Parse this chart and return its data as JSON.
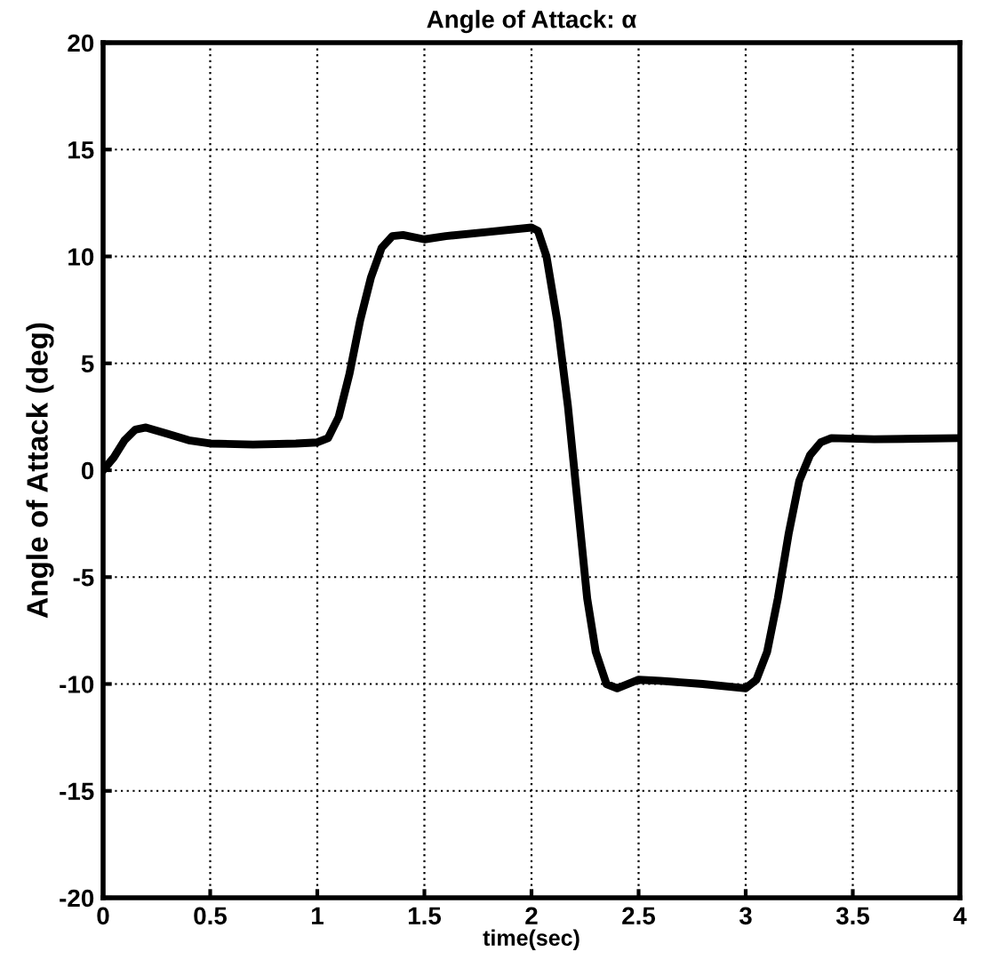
{
  "chart_data": {
    "type": "line",
    "title": "Angle of Attack: α",
    "xlabel": "time(sec)",
    "ylabel": "Angle of Attack (deg)",
    "xlim": [
      0,
      4
    ],
    "xticks": [
      0,
      0.5,
      1,
      1.5,
      2,
      2.5,
      3,
      3.5,
      4
    ],
    "ylim": [
      -20,
      20
    ],
    "yticks": [
      -20,
      -15,
      -10,
      -5,
      0,
      5,
      10,
      15,
      20
    ],
    "grid": true,
    "line_style": "solid",
    "marker": "none",
    "series": [
      {
        "color": "#000000",
        "x": [
          0,
          0.05,
          0.1,
          0.15,
          0.2,
          0.3,
          0.4,
          0.5,
          0.7,
          0.9,
          1.0,
          1.05,
          1.1,
          1.15,
          1.2,
          1.25,
          1.3,
          1.35,
          1.4,
          1.5,
          1.6,
          1.8,
          2.0,
          2.03,
          2.07,
          2.12,
          2.17,
          2.22,
          2.26,
          2.3,
          2.35,
          2.4,
          2.5,
          2.6,
          2.8,
          3.0,
          3.05,
          3.1,
          3.15,
          3.2,
          3.25,
          3.3,
          3.35,
          3.4,
          3.6,
          4.0
        ],
        "values": [
          0,
          0.6,
          1.4,
          1.9,
          2.0,
          1.7,
          1.4,
          1.25,
          1.2,
          1.25,
          1.3,
          1.5,
          2.5,
          4.5,
          7,
          9,
          10.4,
          10.95,
          11.0,
          10.8,
          10.95,
          11.15,
          11.35,
          11.2,
          10,
          7,
          3,
          -2,
          -6,
          -8.5,
          -10,
          -10.2,
          -9.8,
          -9.85,
          -10.0,
          -10.2,
          -9.8,
          -8.5,
          -6,
          -3,
          -0.5,
          0.7,
          1.3,
          1.5,
          1.45,
          1.5
        ]
      }
    ]
  }
}
